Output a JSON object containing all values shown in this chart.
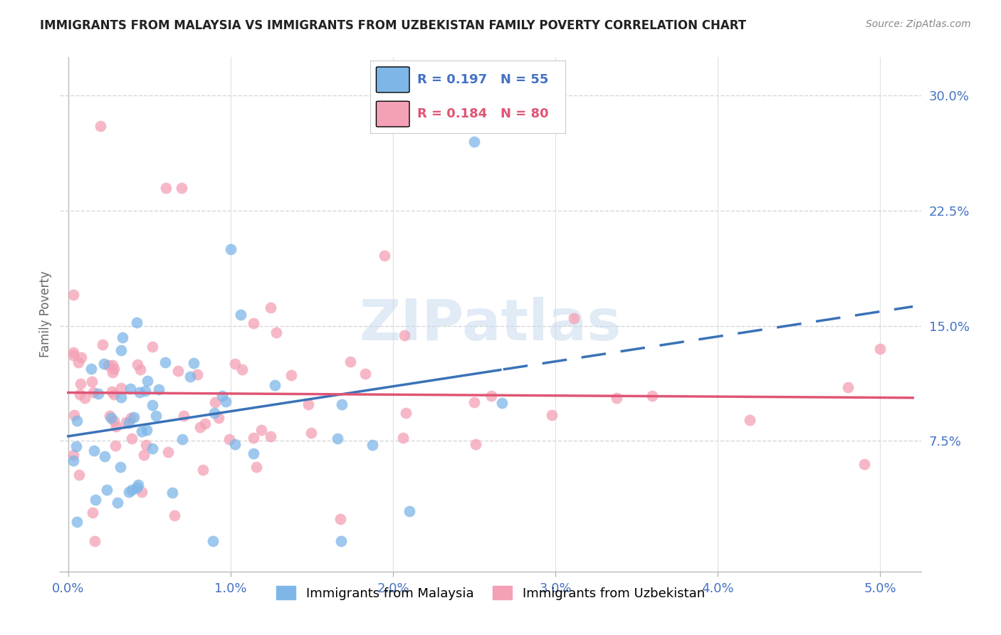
{
  "title": "IMMIGRANTS FROM MALAYSIA VS IMMIGRANTS FROM UZBEKISTAN FAMILY POVERTY CORRELATION CHART",
  "source": "Source: ZipAtlas.com",
  "ylabel": "Family Poverty",
  "legend_malaysia": "Immigrants from Malaysia",
  "legend_uzbekistan": "Immigrants from Uzbekistan",
  "R_malaysia": 0.197,
  "N_malaysia": 55,
  "R_uzbekistan": 0.184,
  "N_uzbekistan": 80,
  "color_malaysia": "#7eb6e8",
  "color_uzbekistan": "#f4a0b5",
  "color_trend_malaysia": "#3a72b8",
  "color_trend_uzbekistan": "#e05575",
  "ytick_labels": [
    "7.5%",
    "15.0%",
    "22.5%",
    "30.0%"
  ],
  "ytick_values": [
    7.5,
    15.0,
    22.5,
    30.0
  ],
  "xtick_labels": [
    "0.0%",
    "1.0%",
    "2.0%",
    "3.0%",
    "4.0%",
    "5.0%"
  ],
  "xtick_values": [
    0.0,
    1.0,
    2.0,
    3.0,
    4.0,
    5.0
  ],
  "xlim": [
    0.0,
    5.2
  ],
  "ylim": [
    0.0,
    32.0
  ],
  "watermark": "ZIPatlas",
  "background_color": "#ffffff",
  "grid_color": "#cccccc",
  "axis_label_color": "#4472c4",
  "title_color": "#222222",
  "source_color": "#888888",
  "ylabel_color": "#666666"
}
